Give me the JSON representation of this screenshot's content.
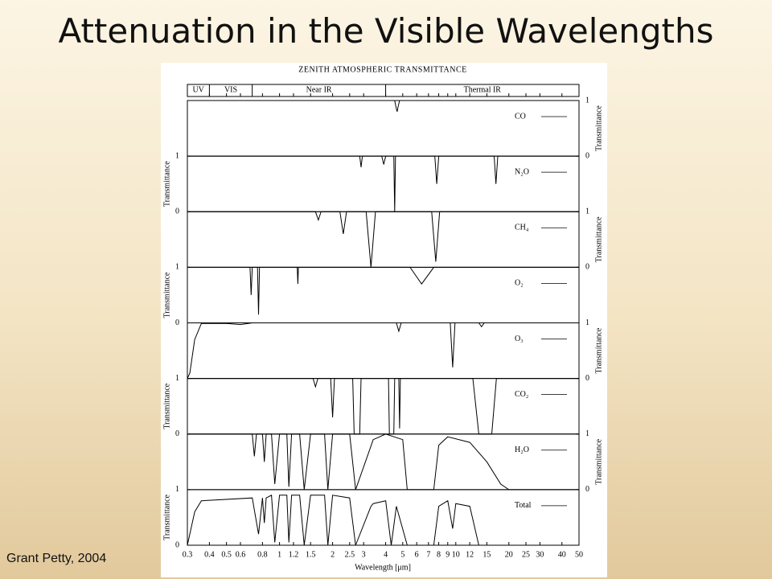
{
  "slide": {
    "title": "Attenuation in the Visible Wavelengths",
    "credit": "Grant Petty, 2004"
  },
  "chart_data": {
    "type": "line",
    "title": "ZENITH ATMOSPHERIC TRANSMITTANCE",
    "xlabel": "Wavelength [μm]",
    "ylabel": "Transmittance",
    "xlog": true,
    "xlim": [
      0.3,
      50
    ],
    "xticks": [
      0.3,
      0.4,
      0.5,
      0.6,
      0.8,
      1,
      1.2,
      1.5,
      2,
      2.5,
      3,
      4,
      5,
      6,
      7,
      8,
      9,
      10,
      12,
      15,
      20,
      25,
      30,
      40,
      50
    ],
    "ylim": [
      0,
      1
    ],
    "yticks": [
      0,
      1
    ],
    "bands": [
      {
        "label": "UV",
        "range": [
          0.3,
          0.4
        ]
      },
      {
        "label": "VIS",
        "range": [
          0.4,
          0.7
        ]
      },
      {
        "label": "Near IR",
        "range": [
          0.7,
          4
        ]
      },
      {
        "label": "Thermal IR",
        "range": [
          4,
          50
        ]
      }
    ],
    "series": [
      {
        "name": "CO",
        "color": "#000000",
        "tick_side": "right",
        "x": [
          0.3,
          4.5,
          4.6,
          4.65,
          4.7,
          4.8,
          50
        ],
        "values": [
          1,
          1,
          0.85,
          0.8,
          0.88,
          1,
          1
        ]
      },
      {
        "name": "N₂O",
        "color": "#000000",
        "tick_side": "left",
        "x": [
          0.3,
          2.85,
          2.9,
          2.95,
          3.8,
          3.9,
          4.0,
          4.45,
          4.5,
          4.55,
          7.6,
          7.8,
          8.0,
          8.5,
          16.5,
          16.9,
          17.3,
          50
        ],
        "values": [
          1,
          1,
          0.8,
          1,
          1,
          0.85,
          1,
          1,
          0,
          1,
          1,
          0.5,
          1,
          1,
          1,
          0.5,
          1,
          1
        ]
      },
      {
        "name": "CH₄",
        "color": "#000000",
        "tick_side": "right",
        "x": [
          0.3,
          1.6,
          1.66,
          1.72,
          2.2,
          2.3,
          2.4,
          3.1,
          3.3,
          3.5,
          7.3,
          7.7,
          8.1,
          50
        ],
        "values": [
          1,
          1,
          0.85,
          1,
          1,
          0.6,
          1,
          1,
          0,
          1,
          1,
          0.1,
          1,
          1
        ]
      },
      {
        "name": "O₂",
        "color": "#000000",
        "tick_side": "left",
        "x": [
          0.3,
          0.68,
          0.69,
          0.7,
          0.75,
          0.76,
          0.77,
          1.26,
          1.27,
          1.28,
          5.5,
          6.4,
          7.5,
          50
        ],
        "values": [
          1,
          1,
          0.5,
          1,
          1,
          0.15,
          1,
          1,
          0.7,
          1,
          1,
          0.7,
          1,
          1
        ]
      },
      {
        "name": "O₃",
        "color": "#000000",
        "tick_side": "right",
        "x": [
          0.3,
          0.31,
          0.33,
          0.36,
          0.5,
          0.6,
          0.7,
          4.6,
          4.75,
          4.9,
          9.3,
          9.6,
          9.9,
          13.5,
          14,
          14.5,
          50
        ],
        "values": [
          0,
          0.1,
          0.7,
          0.99,
          0.99,
          0.97,
          1,
          1,
          0.85,
          1,
          1,
          0.2,
          1,
          1,
          0.93,
          1,
          1
        ]
      },
      {
        "name": "CO₂",
        "color": "#000000",
        "tick_side": "left",
        "x": [
          0.3,
          1.55,
          1.6,
          1.65,
          1.95,
          2.0,
          2.05,
          2.6,
          2.65,
          2.85,
          2.9,
          4.15,
          4.2,
          4.45,
          4.5,
          4.75,
          4.8,
          4.85,
          12.5,
          13.5,
          16,
          17,
          50
        ],
        "values": [
          1,
          1,
          0.85,
          1,
          1,
          0.3,
          1,
          1,
          0,
          0,
          1,
          1,
          0,
          0,
          1,
          1,
          0.1,
          1,
          1,
          0,
          0,
          1,
          1
        ]
      },
      {
        "name": "H₂O",
        "color": "#000000",
        "tick_side": "right",
        "x": [
          0.3,
          0.7,
          0.72,
          0.74,
          0.8,
          0.82,
          0.84,
          0.9,
          0.94,
          1.0,
          1.1,
          1.13,
          1.17,
          1.3,
          1.38,
          1.5,
          1.8,
          1.88,
          2.0,
          2.5,
          2.7,
          3.4,
          4.0,
          5.0,
          5.3,
          7.5,
          8.0,
          9.0,
          12,
          15,
          18,
          20,
          50
        ],
        "values": [
          1,
          1,
          0.6,
          1,
          1,
          0.5,
          1,
          1,
          0.1,
          1,
          1,
          0.05,
          1,
          1,
          0,
          1,
          1,
          0,
          1,
          1,
          0,
          0.9,
          1,
          0.9,
          0,
          0,
          0.8,
          0.95,
          0.85,
          0.5,
          0.1,
          0,
          0
        ]
      },
      {
        "name": "Total",
        "color": "#000000",
        "tick_side": "left",
        "x": [
          0.3,
          0.33,
          0.36,
          0.7,
          0.76,
          0.8,
          0.82,
          0.84,
          0.9,
          0.94,
          1.0,
          1.1,
          1.13,
          1.17,
          1.3,
          1.38,
          1.5,
          1.8,
          1.88,
          2.0,
          2.5,
          2.7,
          3.3,
          3.4,
          4.0,
          4.3,
          4.6,
          5.3,
          7.5,
          8.0,
          9.0,
          9.6,
          10,
          12,
          13.5,
          50
        ],
        "values": [
          0,
          0.6,
          0.8,
          0.85,
          0.2,
          0.85,
          0.4,
          0.85,
          0.9,
          0.05,
          0.9,
          0.9,
          0.05,
          0.9,
          0.9,
          0,
          0.9,
          0.9,
          0,
          0.9,
          0.85,
          0,
          0.7,
          0.75,
          0.8,
          0,
          0.7,
          0,
          0,
          0.7,
          0.8,
          0.3,
          0.75,
          0.7,
          0,
          0
        ]
      }
    ]
  }
}
